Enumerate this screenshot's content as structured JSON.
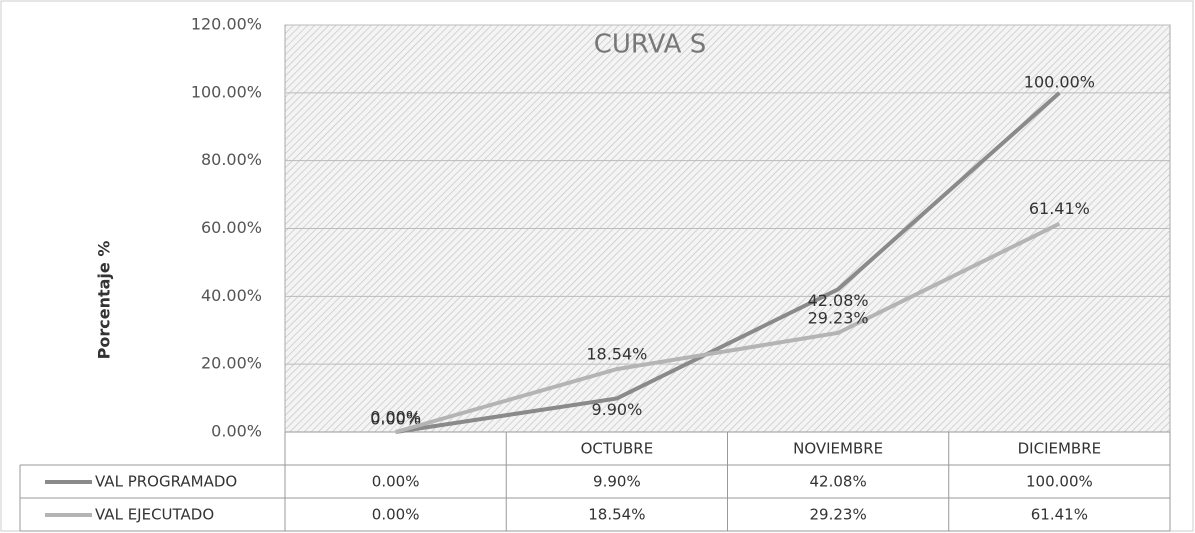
{
  "chart_data": {
    "type": "line",
    "title": "CURVA S",
    "y_label": "Porcentaje %",
    "categories": [
      null,
      "OCTUBRE",
      "NOVIEMBRE",
      "DICIEMBRE"
    ],
    "series": [
      {
        "name": "VAL PROGRAMADO",
        "color": "#8a8a8a",
        "values": [
          0,
          9.9,
          42.08,
          100
        ],
        "value_labels": [
          "0.00%",
          "9.90%",
          "42.08%",
          "100.00%"
        ]
      },
      {
        "name": "VAL EJECUTADO",
        "color": "#b4b4b4",
        "values": [
          0,
          18.54,
          29.23,
          61.41
        ],
        "value_labels": [
          "0.00%",
          "18.54%",
          "29.23%",
          "61.41%"
        ]
      }
    ],
    "ylim": [
      0,
      120
    ],
    "yticks": [
      {
        "value": 0,
        "label": "0.00%"
      },
      {
        "value": 20,
        "label": "20.00%"
      },
      {
        "value": 40,
        "label": "40.00%"
      },
      {
        "value": 60,
        "label": "60.00%"
      },
      {
        "value": 80,
        "label": "80.00%"
      },
      {
        "value": 100,
        "label": "100.00%"
      },
      {
        "value": 120,
        "label": "120.00%"
      }
    ],
    "grid": true
  }
}
